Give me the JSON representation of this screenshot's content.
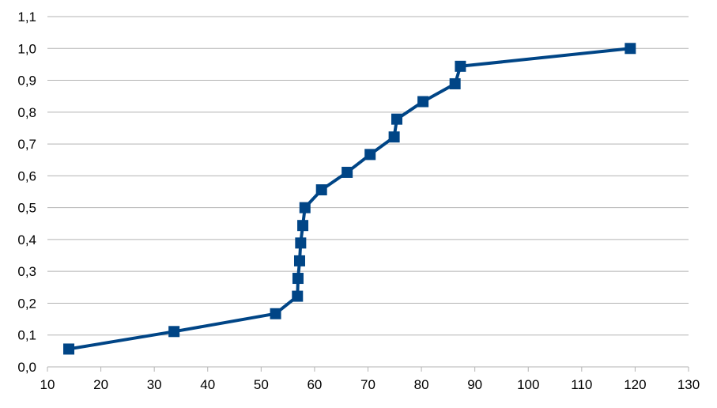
{
  "chart_data": {
    "type": "line",
    "title": "",
    "xlabel": "",
    "ylabel": "",
    "xlim": [
      10,
      130
    ],
    "ylim": [
      0,
      1.1
    ],
    "x_ticks": [
      10,
      20,
      30,
      40,
      50,
      60,
      70,
      80,
      90,
      100,
      110,
      120,
      130
    ],
    "x_tick_labels": [
      "10",
      "20",
      "30",
      "40",
      "50",
      "60",
      "70",
      "80",
      "90",
      "100",
      "110",
      "120",
      "130"
    ],
    "y_ticks": [
      0,
      0.1,
      0.2,
      0.3,
      0.4,
      0.5,
      0.6,
      0.7,
      0.8,
      0.9,
      1.0,
      1.1
    ],
    "y_tick_labels": [
      "0,0",
      "0,1",
      "0,2",
      "0,3",
      "0,4",
      "0,5",
      "0,6",
      "0,7",
      "0,8",
      "0,9",
      "1,0",
      "1,1"
    ],
    "grid": "horizontal",
    "legend": "none",
    "series": [
      {
        "color": "#004586",
        "marker": "square",
        "points": [
          {
            "x": 14,
            "y": 0.056
          },
          {
            "x": 33.7,
            "y": 0.111
          },
          {
            "x": 52.7,
            "y": 0.167
          },
          {
            "x": 56.8,
            "y": 0.222
          },
          {
            "x": 56.9,
            "y": 0.278
          },
          {
            "x": 57.2,
            "y": 0.333
          },
          {
            "x": 57.4,
            "y": 0.389
          },
          {
            "x": 57.8,
            "y": 0.444
          },
          {
            "x": 58.2,
            "y": 0.5
          },
          {
            "x": 61.3,
            "y": 0.556
          },
          {
            "x": 66.1,
            "y": 0.611
          },
          {
            "x": 70.4,
            "y": 0.667
          },
          {
            "x": 74.9,
            "y": 0.722
          },
          {
            "x": 75.4,
            "y": 0.778
          },
          {
            "x": 80.3,
            "y": 0.833
          },
          {
            "x": 86.3,
            "y": 0.889
          },
          {
            "x": 87.3,
            "y": 0.944
          },
          {
            "x": 119.1,
            "y": 1.0
          }
        ]
      }
    ]
  }
}
